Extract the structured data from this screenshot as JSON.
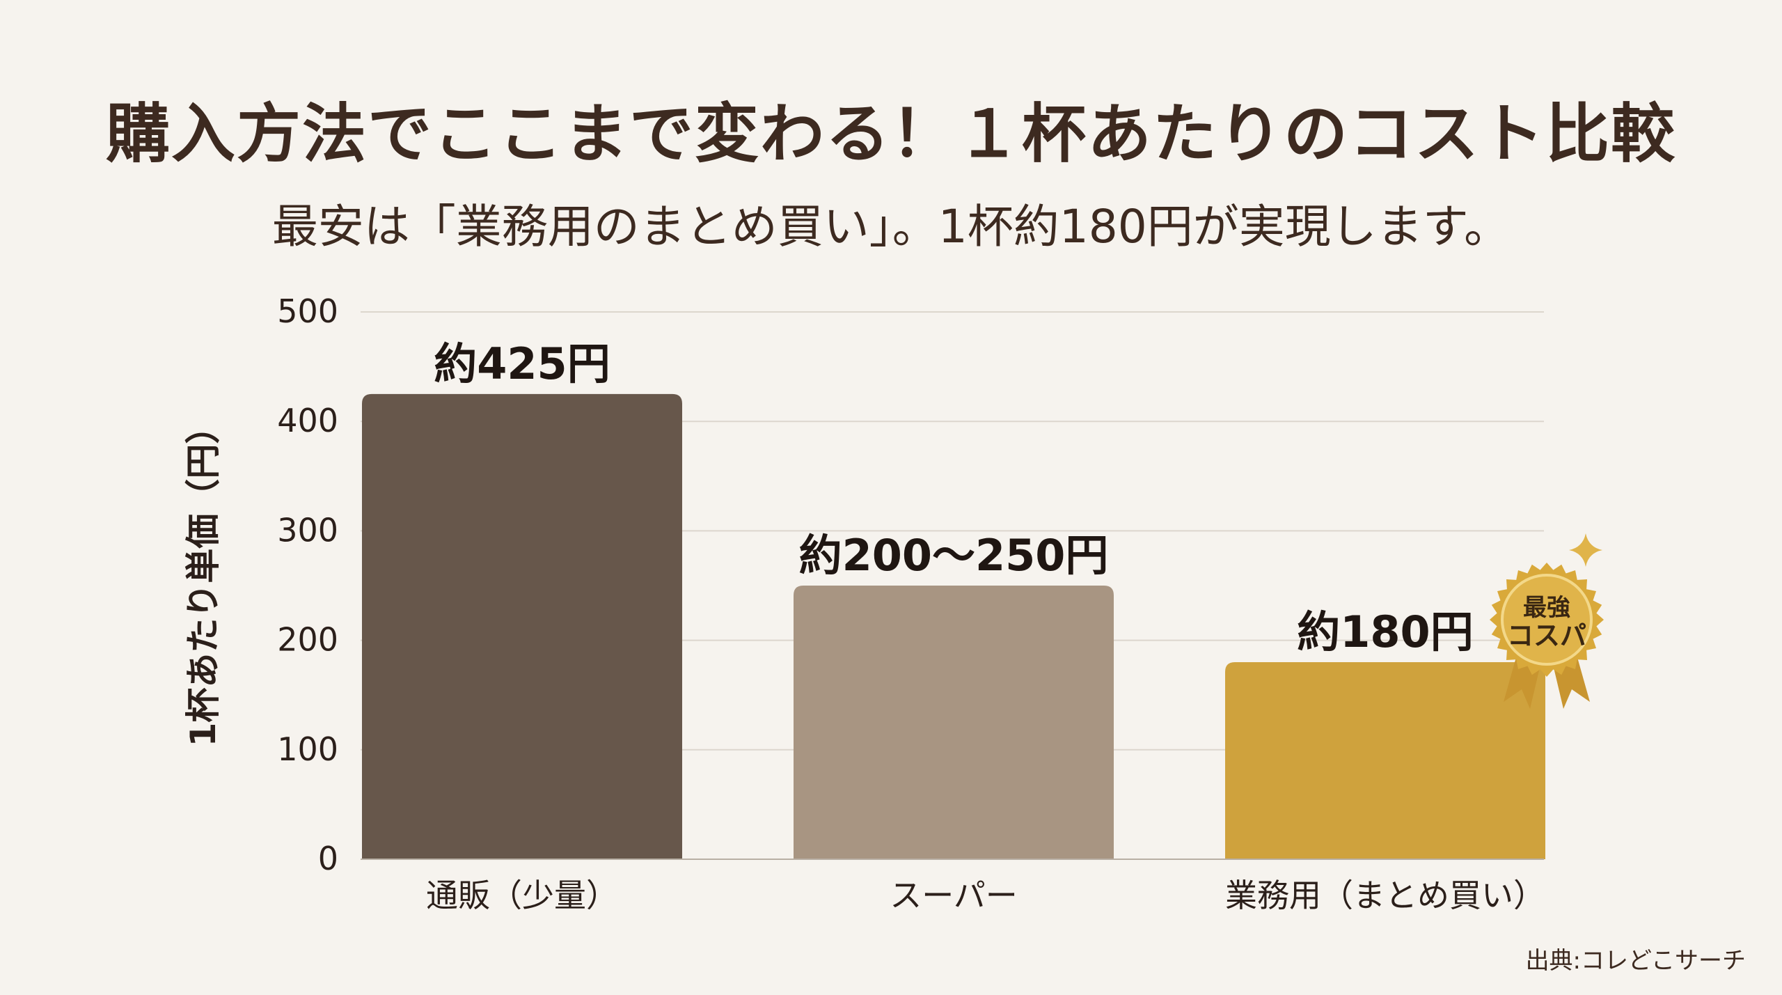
{
  "title": "購入方法でここまで変わる！１杯あたりのコスト比較",
  "subtitle": "最安は「業務用のまとめ買い」。1杯約180円が実現します。",
  "source": "出典:コレどこサーチ",
  "badge": {
    "line1": "最強",
    "line2": "コスパ"
  },
  "colors": {
    "background": "#f6f3ee",
    "bar_mail_order": "#67574b",
    "bar_supermarket": "#a89582",
    "bar_bulk": "#cfa23d",
    "grid": "#dcd6cd",
    "badge_gold": "#d9a93a"
  },
  "chart_data": {
    "type": "bar",
    "categories": [
      "通販（少量）",
      "スーパー",
      "業務用（まとめ買い）"
    ],
    "values": [
      425,
      250,
      180
    ],
    "value_labels": [
      "約425円",
      "約200〜250円",
      "約180円"
    ],
    "xlabel": "",
    "ylabel": "1杯あたり単価（円）",
    "ylim": [
      0,
      500
    ],
    "yticks": [
      0,
      100,
      200,
      300,
      400,
      500
    ],
    "grid": true,
    "legend": "none"
  }
}
